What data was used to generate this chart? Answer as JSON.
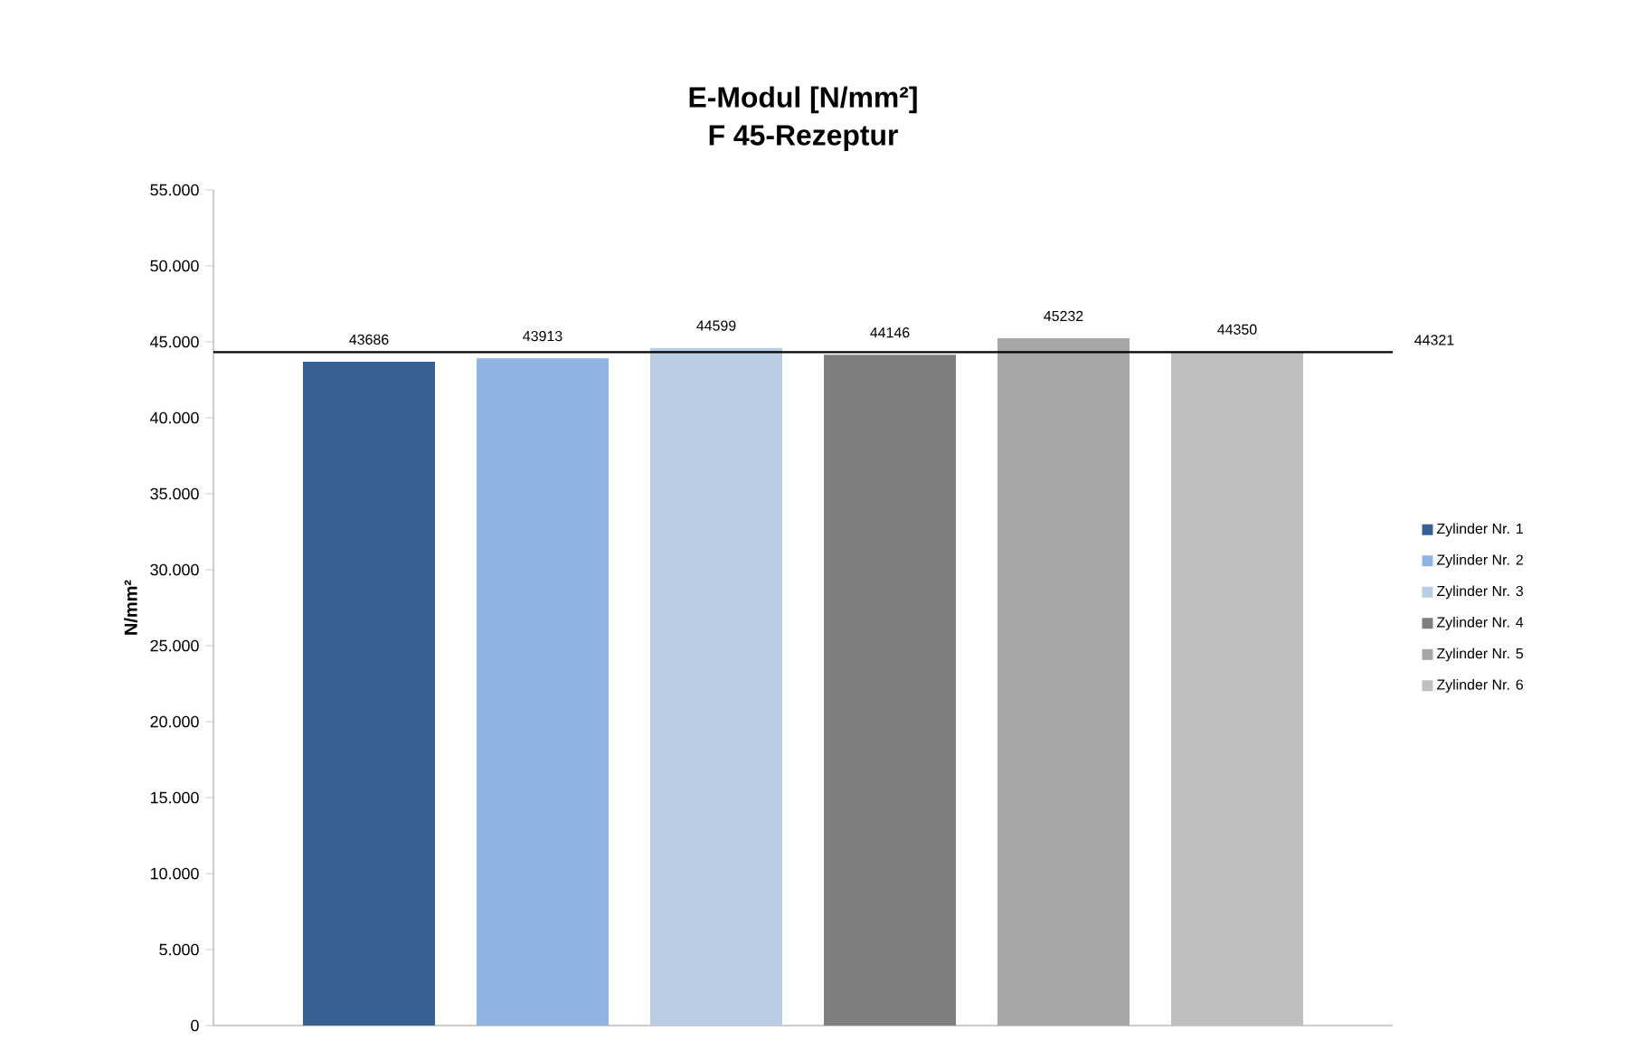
{
  "chart_data": {
    "type": "bar",
    "title": "E-Modul [N/mm²]",
    "subtitle": "F 45-Rezeptur",
    "ylabel": "N/mm²",
    "categories": [
      null
    ],
    "series": [
      {
        "name": "Zylinder Nr. 1",
        "color": "#376092",
        "values": [
          43686
        ]
      },
      {
        "name": "Zylinder Nr. 2",
        "color": "#8eb4e3",
        "values": [
          43913
        ]
      },
      {
        "name": "Zylinder Nr. 3",
        "color": "#b9cde5",
        "values": [
          44599
        ]
      },
      {
        "name": "Zylinder Nr. 4",
        "color": "#7f7f7f",
        "values": [
          44146
        ]
      },
      {
        "name": "Zylinder Nr. 5",
        "color": "#a6a6a6",
        "values": [
          45232
        ]
      },
      {
        "name": "Zylinder Nr. 6",
        "color": "#bfbfbf",
        "values": [
          44350
        ]
      }
    ],
    "ylim": [
      0,
      55000
    ],
    "yticks": [
      {
        "value": 0,
        "label": "0"
      },
      {
        "value": 5000,
        "label": "5.000"
      },
      {
        "value": 10000,
        "label": "10.000"
      },
      {
        "value": 15000,
        "label": "15.000"
      },
      {
        "value": 20000,
        "label": "20.000"
      },
      {
        "value": 25000,
        "label": "25.000"
      },
      {
        "value": 30000,
        "label": "30.000"
      },
      {
        "value": 35000,
        "label": "35.000"
      },
      {
        "value": 40000,
        "label": "40.000"
      },
      {
        "value": 45000,
        "label": "45.000"
      },
      {
        "value": 50000,
        "label": "50.000"
      },
      {
        "value": 55000,
        "label": "55.000"
      }
    ],
    "ref_lines": [
      {
        "axis": "y",
        "value": 44321,
        "label": "44321",
        "color": "#000000"
      }
    ],
    "data_labels": true,
    "legend": "right"
  }
}
